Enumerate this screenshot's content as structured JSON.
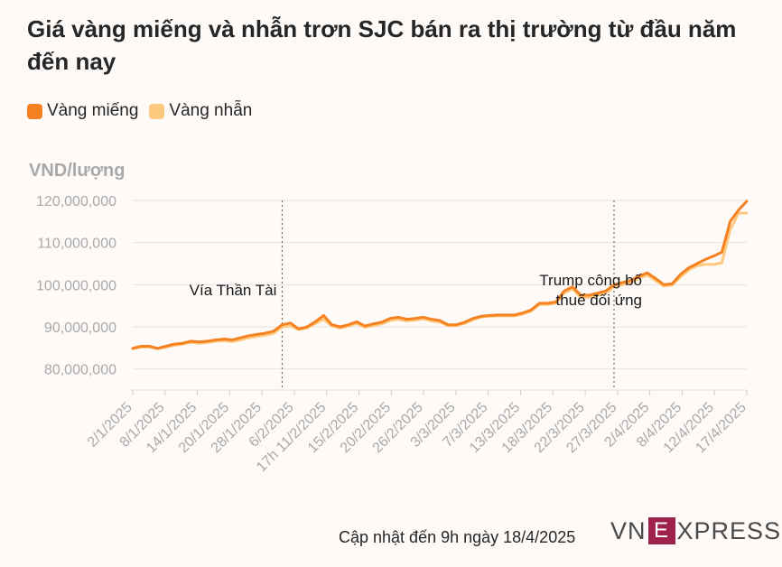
{
  "title": "Giá vàng miếng và nhẫn trơn SJC bán ra thị trường từ đầu năm đến nay",
  "legend": {
    "items": [
      {
        "label": "Vàng miếng",
        "color": "#f58220"
      },
      {
        "label": "Vàng nhẫn",
        "color": "#fdc97f"
      }
    ]
  },
  "footer": {
    "update_text": "Cập nhật đến 9h ngày 18/4/2025"
  },
  "logo": {
    "left": "VN",
    "box": "E",
    "right": "XPRESS"
  },
  "chart_data": {
    "type": "line",
    "ylabel": "VND/lượng",
    "ylim": [
      75000000,
      120000000
    ],
    "y_ticks": [
      80000000,
      90000000,
      100000000,
      110000000,
      120000000
    ],
    "y_tick_labels": [
      "80,000,000",
      "90,000,000",
      "100,000,000",
      "110,000,000",
      "120,000,000"
    ],
    "x_tick_labels": [
      "2/1/2025",
      "8/1/2025",
      "14/1/2025",
      "20/1/2025",
      "28/1/2025",
      "6/2/2025",
      "17h 11/2/2025",
      "15/2/2025",
      "20/2/2025",
      "26/2/2025",
      "3/3/2025",
      "7/3/2025",
      "13/3/2025",
      "18/3/2025",
      "22/3/2025",
      "27/3/2025",
      "2/4/2025",
      "8/4/2025",
      "12/4/2025",
      "17/4/2025"
    ],
    "annotations": [
      {
        "text": "Vía Thần Tài",
        "at_index": 18
      },
      {
        "text_lines": [
          "Trump công bố",
          "thuế đối ứng"
        ],
        "at_index": 58
      }
    ],
    "series": [
      {
        "name": "Vàng miếng",
        "color": "#f58220",
        "values": [
          84900000,
          85400000,
          85400000,
          84900000,
          85400000,
          85900000,
          86100000,
          86600000,
          86400000,
          86600000,
          86900000,
          87100000,
          86900000,
          87400000,
          87900000,
          88200000,
          88500000,
          89000000,
          90500000,
          90900000,
          89500000,
          90000000,
          91200000,
          92700000,
          90500000,
          90000000,
          90500000,
          91200000,
          90200000,
          90700000,
          91100000,
          92000000,
          92300000,
          91800000,
          92000000,
          92300000,
          91800000,
          91500000,
          90500000,
          90500000,
          91100000,
          92000000,
          92500000,
          92700000,
          92800000,
          92800000,
          92800000,
          93300000,
          94000000,
          95600000,
          95600000,
          95900000,
          98500000,
          99500000,
          97500000,
          97500000,
          98000000,
          98500000,
          100000000,
          100500000,
          101000000,
          102000000,
          102800000,
          101500000,
          100000000,
          100200000,
          102400000,
          104000000,
          105000000,
          106000000,
          106800000,
          107700000,
          115000000,
          117700000,
          119800000
        ]
      },
      {
        "name": "Vàng nhẫn",
        "color": "#fdc97f",
        "values": [
          84800000,
          85200000,
          85200000,
          84800000,
          85200000,
          85600000,
          85900000,
          86300000,
          86100000,
          86300000,
          86600000,
          86700000,
          86500000,
          86900000,
          87400000,
          87700000,
          88000000,
          88500000,
          90000000,
          90200000,
          89400000,
          89700000,
          90800000,
          91800000,
          90200000,
          89700000,
          90200000,
          90800000,
          89900000,
          90300000,
          90700000,
          91500000,
          91800000,
          91400000,
          91600000,
          91900000,
          91400000,
          91100000,
          90300000,
          90300000,
          90800000,
          91700000,
          92300000,
          92500000,
          92600000,
          92600000,
          92600000,
          93000000,
          93700000,
          95300000,
          95300000,
          95600000,
          98000000,
          99000000,
          97000000,
          97000000,
          97500000,
          98000000,
          99500000,
          100000000,
          100500000,
          101500000,
          102300000,
          101000000,
          99700000,
          99900000,
          101800000,
          103500000,
          104500000,
          104800000,
          104800000,
          105200000,
          113000000,
          117000000,
          117000000
        ]
      }
    ]
  }
}
